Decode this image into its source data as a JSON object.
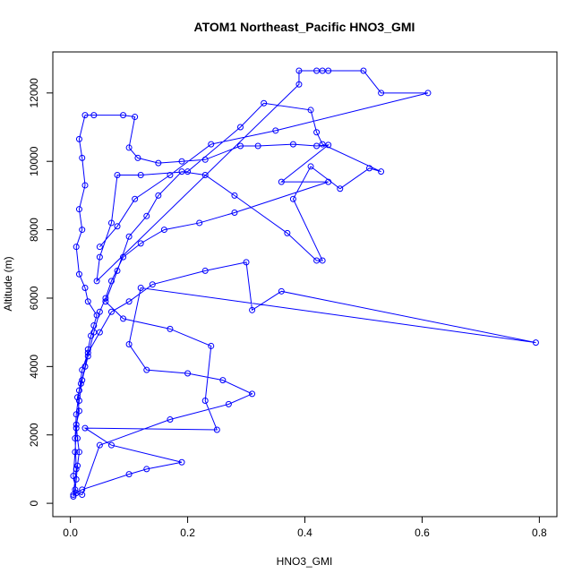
{
  "chart_data": {
    "type": "line",
    "title": "ATOM1 Northeast_Pacific HNO3_GMI",
    "xlabel": "HNO3_GMI",
    "ylabel": "Altitude (m)",
    "color": "#0000ff",
    "markers": true,
    "x": [
      0.005,
      0.008,
      0.01,
      0.012,
      0.015,
      0.012,
      0.01,
      0.015,
      0.012,
      0.018,
      0.025,
      0.03,
      0.035,
      0.04,
      0.045,
      0.03,
      0.025,
      0.015,
      0.01,
      0.02,
      0.015,
      0.025,
      0.02,
      0.015,
      0.025,
      0.04,
      0.09,
      0.11,
      0.1,
      0.115,
      0.15,
      0.19,
      0.23,
      0.29,
      0.32,
      0.38,
      0.42,
      0.44,
      0.36,
      0.44,
      0.28,
      0.22,
      0.16,
      0.12,
      0.09,
      0.07,
      0.06,
      0.05,
      0.04,
      0.03,
      0.02,
      0.015,
      0.01,
      0.008,
      0.005,
      0.01,
      0.02,
      0.05,
      0.17,
      0.27,
      0.31,
      0.26,
      0.2,
      0.13,
      0.1,
      0.12,
      0.794,
      0.36,
      0.31,
      0.3,
      0.23,
      0.14,
      0.1,
      0.07,
      0.05,
      0.03,
      0.02,
      0.015,
      0.01,
      0.008,
      0.01,
      0.005,
      0.02,
      0.1,
      0.13,
      0.19,
      0.07,
      0.025,
      0.25,
      0.23,
      0.24,
      0.17,
      0.09,
      0.06,
      0.08,
      0.1,
      0.13,
      0.15,
      0.19,
      0.23,
      0.28,
      0.37,
      0.42,
      0.43,
      0.38,
      0.41,
      0.46,
      0.51,
      0.53,
      0.43,
      0.42,
      0.41,
      0.33,
      0.29,
      0.2,
      0.12,
      0.08,
      0.07,
      0.05,
      0.045,
      0.39,
      0.39,
      0.42,
      0.43,
      0.44,
      0.5,
      0.53,
      0.61,
      0.35,
      0.24,
      0.17,
      0.11,
      0.08,
      0.05
    ],
    "values": [
      200,
      400,
      700,
      1100,
      1500,
      1900,
      2300,
      2700,
      3100,
      3500,
      4000,
      4500,
      4900,
      5200,
      5500,
      5900,
      6300,
      6700,
      7500,
      8000,
      8600,
      9300,
      10100,
      10650,
      11350,
      11350,
      11350,
      11300,
      10400,
      10100,
      9950,
      10000,
      10050,
      10450,
      10450,
      10500,
      10450,
      10480,
      9400,
      9400,
      8500,
      8200,
      8000,
      7600,
      7200,
      6500,
      6000,
      5600,
      5000,
      4300,
      3600,
      3000,
      2200,
      1500,
      800,
      300,
      250,
      1700,
      2450,
      2900,
      3200,
      3600,
      3800,
      3900,
      4650,
      6300,
      4700,
      6200,
      5650,
      7050,
      6800,
      6400,
      5900,
      5600,
      5000,
      4400,
      3900,
      3300,
      2600,
      1900,
      1000,
      250,
      400,
      850,
      1000,
      1200,
      1700,
      2200,
      2150,
      3000,
      4600,
      5100,
      5400,
      5900,
      6800,
      7800,
      8400,
      9000,
      9700,
      9600,
      9000,
      7900,
      7100,
      7100,
      8900,
      9850,
      9200,
      9800,
      9700,
      10500,
      10850,
      11500,
      11700,
      11000,
      9700,
      9600,
      9600,
      8200,
      7200,
      6500,
      12250,
      12650,
      12650,
      12650,
      12650,
      12650,
      12000,
      12000,
      10900,
      10500,
      9600,
      8900,
      8100,
      7500
    ],
    "xlim": [
      -0.03,
      0.83
    ],
    "ylim": [
      -390,
      13200
    ],
    "xticks": [
      {
        "value": 0,
        "label": "0.0"
      },
      0.2,
      0.4,
      0.6,
      0.8
    ],
    "yticks": [
      0,
      2000,
      4000,
      6000,
      8000,
      10000,
      12000
    ]
  }
}
